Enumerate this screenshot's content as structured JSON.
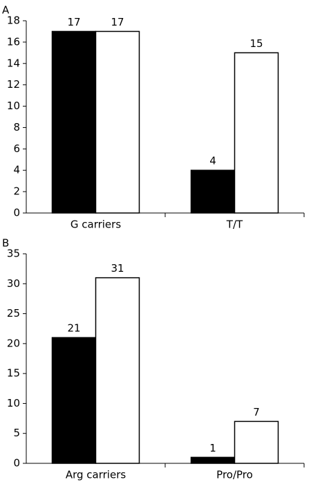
{
  "chart_data": [
    {
      "type": "bar",
      "title": "A",
      "categories": [
        "G carriers",
        "T/T"
      ],
      "series": [
        {
          "color": "#000000",
          "values": [
            17,
            4
          ]
        },
        {
          "color": "#ffffff",
          "values": [
            17,
            15
          ]
        }
      ],
      "ylim": [
        0,
        18
      ],
      "yticks": [
        0,
        2,
        4,
        6,
        8,
        10,
        12,
        14,
        16,
        18
      ]
    },
    {
      "type": "bar",
      "title": "B",
      "categories": [
        "Arg carriers",
        "Pro/Pro"
      ],
      "series": [
        {
          "color": "#000000",
          "values": [
            21,
            1
          ]
        },
        {
          "color": "#ffffff",
          "values": [
            31,
            7
          ]
        }
      ],
      "ylim": [
        0,
        35
      ],
      "yticks": [
        0,
        5,
        10,
        15,
        20,
        25,
        30,
        35
      ]
    }
  ]
}
